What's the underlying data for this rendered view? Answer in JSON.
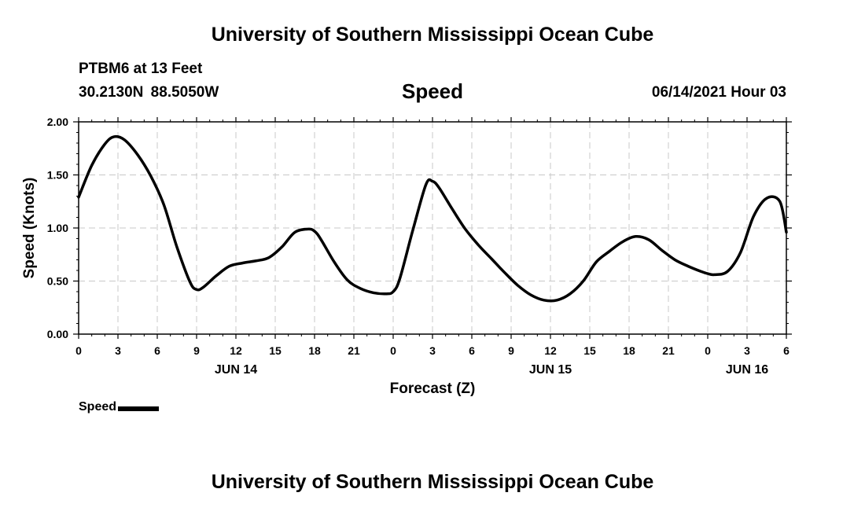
{
  "header": {
    "title": "University of Southern Mississippi Ocean Cube",
    "station": "PTBM6 at 13 Feet",
    "coordinates": "30.2130N  88.5050W",
    "datetime": "06/14/2021 Hour 03"
  },
  "footer": {
    "title": "University of Southern Mississippi Ocean Cube"
  },
  "chart_data": {
    "type": "line",
    "title": "Speed",
    "xlabel": "Forecast (Z)",
    "ylabel": "Speed (Knots)",
    "xlim": [
      0,
      54
    ],
    "ylim": [
      0,
      2.0
    ],
    "grid": true,
    "legend_position": "bottom-left",
    "x_tick_labels": [
      "0",
      "3",
      "6",
      "9",
      "12",
      "15",
      "18",
      "21",
      "0",
      "3",
      "6",
      "9",
      "12",
      "15",
      "18",
      "21",
      "0",
      "3",
      "6"
    ],
    "day_labels": [
      {
        "label": "JUN 14",
        "at": 12
      },
      {
        "label": "JUN 15",
        "at": 36
      },
      {
        "label": "JUN 16",
        "at": 51
      }
    ],
    "y_tick_labels": [
      "0.00",
      "0.50",
      "1.00",
      "1.50",
      "2.00"
    ],
    "y_ticks": [
      0,
      0.5,
      1.0,
      1.5,
      2.0
    ],
    "series": [
      {
        "name": "Speed",
        "color": "#000000",
        "x": [
          0,
          1,
          2,
          2.7,
          3.5,
          4.5,
          5.5,
          6.5,
          7.5,
          8.5,
          9,
          9.5,
          10.5,
          11.5,
          12.5,
          13.5,
          14.5,
          15.5,
          16.5,
          17.5,
          18,
          18.5,
          19.5,
          20.5,
          21.5,
          22.5,
          23.5,
          24,
          24.5,
          25.5,
          26.5,
          27,
          27.5,
          28.5,
          29.5,
          30.5,
          31.5,
          32.5,
          33.5,
          34.5,
          35.5,
          36.5,
          37.5,
          38.5,
          39.5,
          40.5,
          41.5,
          42.5,
          43.5,
          44.5,
          45.5,
          46.5,
          47.5,
          48,
          48.5,
          49.5,
          50.5,
          51.5,
          52.5,
          53.5,
          54
        ],
        "values": [
          1.29,
          1.59,
          1.79,
          1.86,
          1.83,
          1.69,
          1.49,
          1.22,
          0.82,
          0.49,
          0.42,
          0.44,
          0.55,
          0.64,
          0.67,
          0.69,
          0.72,
          0.82,
          0.96,
          0.99,
          0.97,
          0.89,
          0.68,
          0.51,
          0.43,
          0.39,
          0.38,
          0.4,
          0.52,
          0.98,
          1.41,
          1.44,
          1.38,
          1.18,
          0.99,
          0.84,
          0.71,
          0.58,
          0.46,
          0.37,
          0.32,
          0.32,
          0.38,
          0.5,
          0.68,
          0.78,
          0.87,
          0.92,
          0.89,
          0.79,
          0.7,
          0.64,
          0.59,
          0.57,
          0.56,
          0.59,
          0.77,
          1.11,
          1.28,
          1.25,
          0.96
        ]
      }
    ]
  },
  "legend": {
    "label": "Speed"
  }
}
